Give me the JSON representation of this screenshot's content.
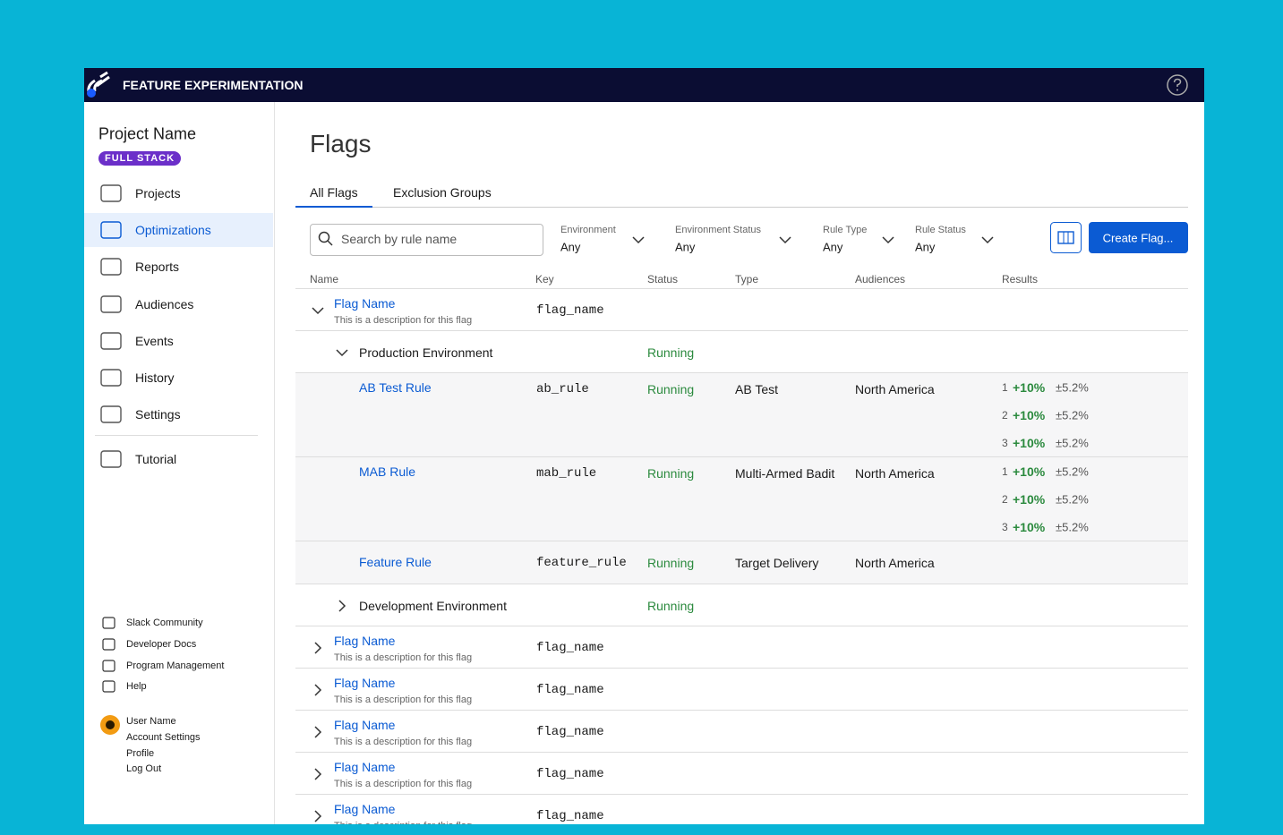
{
  "header": {
    "title": "FEATURE EXPERIMENTATION"
  },
  "sidebar": {
    "project": "Project Name",
    "badge": "FULL STACK",
    "nav": [
      "Projects",
      "Optimizations",
      "Reports",
      "Audiences",
      "Events",
      "History",
      "Settings",
      "Tutorial"
    ],
    "links": [
      "Slack Community",
      "Developer Docs",
      "Program Management",
      "Help"
    ],
    "user": [
      "User Name",
      "Account Settings",
      "Profile",
      "Log Out"
    ]
  },
  "page": {
    "title": "Flags",
    "tabs": [
      "All Flags",
      "Exclusion Groups"
    ],
    "search": "Search by rule name",
    "filters": [
      {
        "label": "Environment",
        "value": "Any"
      },
      {
        "label": "Environment Status",
        "value": "Any"
      },
      {
        "label": "Rule Type",
        "value": "Any"
      },
      {
        "label": "Rule Status",
        "value": "Any"
      }
    ],
    "button": "Create Flag..."
  },
  "table": {
    "columns": [
      "Name",
      "Key",
      "Status",
      "Type",
      "Audiences",
      "Results"
    ],
    "flags": [
      {
        "name": "Flag Name",
        "description": "This is a description for this flag",
        "key": "flag_name",
        "environments": [
          {
            "name": "Production Environment",
            "status": "Running",
            "rules": [
              {
                "name": "AB Test Rule",
                "key": "ab_rule",
                "status": "Running",
                "type": "AB Test",
                "audience": "North America",
                "results": [
                  {
                    "rank": "1",
                    "change": "+10%",
                    "error": "±5.2%"
                  },
                  {
                    "rank": "2",
                    "change": "+10%",
                    "error": "±5.2%"
                  },
                  {
                    "rank": "3",
                    "change": "+10%",
                    "error": "±5.2%"
                  }
                ]
              },
              {
                "name": "MAB Rule",
                "key": "mab_rule",
                "status": "Running",
                "type": "Multi-Armed Badit",
                "audience": "North America",
                "results": [
                  {
                    "rank": "1",
                    "change": "+10%",
                    "error": "±5.2%"
                  },
                  {
                    "rank": "2",
                    "change": "+10%",
                    "error": "±5.2%"
                  },
                  {
                    "rank": "3",
                    "change": "+10%",
                    "error": "±5.2%"
                  }
                ]
              },
              {
                "name": "Feature Rule",
                "key": "feature_rule",
                "status": "Running",
                "type": "Target Delivery",
                "audience": "North America"
              }
            ]
          },
          {
            "name": "Development Environment",
            "status": "Running"
          }
        ]
      },
      {
        "name": "Flag Name",
        "description": "This is a description for this flag",
        "key": "flag_name"
      },
      {
        "name": "Flag Name",
        "description": "This is a description for this flag",
        "key": "flag_name"
      },
      {
        "name": "Flag Name",
        "description": "This is a description for this flag",
        "key": "flag_name"
      },
      {
        "name": "Flag Name",
        "description": "This is a description for this flag",
        "key": "flag_name"
      },
      {
        "name": "Flag Name",
        "description": "This is a description for this flag",
        "key": "flag_name"
      }
    ]
  }
}
